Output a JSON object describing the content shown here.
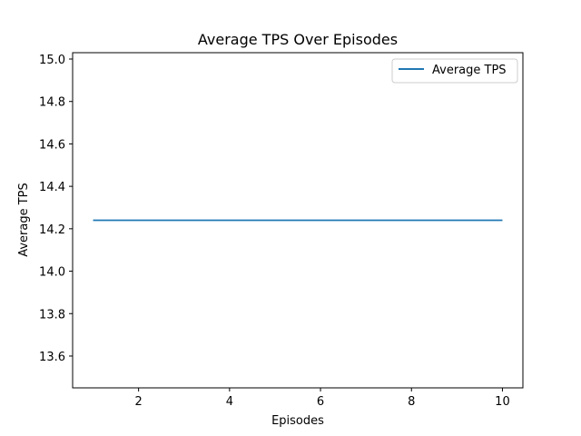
{
  "chart_data": {
    "type": "line",
    "title": "Average TPS Over Episodes",
    "xlabel": "Episodes",
    "ylabel": "Average TPS",
    "x": [
      1,
      2,
      3,
      4,
      5,
      6,
      7,
      8,
      9,
      10
    ],
    "series": [
      {
        "name": "Average TPS",
        "values": [
          14.24,
          14.24,
          14.24,
          14.24,
          14.24,
          14.24,
          14.24,
          14.24,
          14.24,
          14.24
        ],
        "color": "#1f77b4"
      }
    ],
    "xlim": [
      0.55,
      10.45
    ],
    "ylim": [
      13.45,
      15.03
    ],
    "xticks": [
      2,
      4,
      6,
      8,
      10
    ],
    "xtick_labels": [
      "2",
      "4",
      "6",
      "8",
      "10"
    ],
    "yticks": [
      13.6,
      13.8,
      14.0,
      14.2,
      14.4,
      14.6,
      14.8,
      15.0
    ],
    "ytick_labels": [
      "13.6",
      "13.8",
      "14.0",
      "14.2",
      "14.4",
      "14.6",
      "14.8",
      "15.0"
    ],
    "grid": false,
    "legend_position": "top-right"
  }
}
